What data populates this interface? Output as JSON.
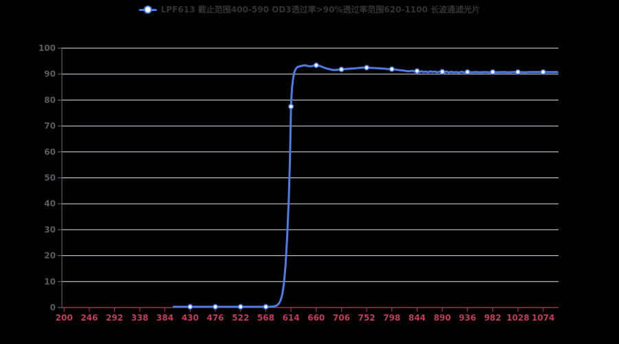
{
  "page": {
    "background": "#000000"
  },
  "legend": {
    "label": "LPF613 截止范围400-590 OD3透过率>90%透过率范围620-1100 长波通滤光片"
  },
  "colors": {
    "background": "#000000",
    "series_line": "#4e7ce6",
    "marker_fill": "#ffffff",
    "grid_line": "#e0e4ee",
    "y_axis": "#6a6f77",
    "y_label": "#585d64",
    "x_axis": "#c5395a",
    "x_label": "#c5395a",
    "legend_text": "#333333"
  },
  "chart_data": {
    "type": "line",
    "title": "LPF613 截止范围400-590 OD3透过率>90%透过率范围620-1100 长波通滤光片",
    "xlabel": "",
    "ylabel": "",
    "grid": true,
    "legend_position": "top-center",
    "xlim": [
      196,
      1102
    ],
    "ylim": [
      0,
      100
    ],
    "x_ticks": [
      200,
      246,
      292,
      338,
      384,
      430,
      476,
      522,
      568,
      614,
      660,
      706,
      752,
      798,
      844,
      890,
      936,
      982,
      1028,
      1074
    ],
    "y_ticks": [
      0,
      10,
      20,
      30,
      40,
      50,
      60,
      70,
      80,
      90,
      100
    ],
    "series": [
      {
        "name": "LPF613 截止范围400-590 OD3透过率>90%透过率范围620-1100 长波通滤光片",
        "color": "#4e7ce6",
        "points": [
          [
            400,
            0.3
          ],
          [
            420,
            0.3
          ],
          [
            440,
            0.3
          ],
          [
            460,
            0.3
          ],
          [
            480,
            0.3
          ],
          [
            500,
            0.3
          ],
          [
            520,
            0.3
          ],
          [
            540,
            0.3
          ],
          [
            560,
            0.3
          ],
          [
            575,
            0.3
          ],
          [
            582,
            0.4
          ],
          [
            588,
            0.8
          ],
          [
            592,
            1.6
          ],
          [
            595,
            2.8
          ],
          [
            598,
            5
          ],
          [
            601,
            9
          ],
          [
            604,
            16
          ],
          [
            607,
            27
          ],
          [
            610,
            42
          ],
          [
            612,
            56
          ],
          [
            613,
            66
          ],
          [
            614,
            77.5
          ],
          [
            615,
            82
          ],
          [
            616,
            85
          ],
          [
            618,
            88.5
          ],
          [
            620,
            90.6
          ],
          [
            622,
            91.8
          ],
          [
            625,
            92.6
          ],
          [
            628,
            92.9
          ],
          [
            632,
            93.1
          ],
          [
            636,
            93.3
          ],
          [
            640,
            93.4
          ],
          [
            645,
            93.1
          ],
          [
            650,
            93.0
          ],
          [
            655,
            93.2
          ],
          [
            660,
            93.4
          ],
          [
            666,
            93.2
          ],
          [
            672,
            92.7
          ],
          [
            678,
            92.2
          ],
          [
            684,
            91.9
          ],
          [
            690,
            91.6
          ],
          [
            696,
            91.6
          ],
          [
            700,
            91.7
          ],
          [
            706,
            91.8
          ],
          [
            714,
            92.0
          ],
          [
            722,
            92.1
          ],
          [
            730,
            92.2
          ],
          [
            738,
            92.4
          ],
          [
            745,
            92.5
          ],
          [
            752,
            92.5
          ],
          [
            760,
            92.4
          ],
          [
            768,
            92.3
          ],
          [
            776,
            92.2
          ],
          [
            784,
            92.1
          ],
          [
            790,
            92.0
          ],
          [
            798,
            91.9
          ],
          [
            806,
            91.7
          ],
          [
            812,
            91.5
          ],
          [
            818,
            91.4
          ],
          [
            824,
            91.2
          ],
          [
            830,
            91.1
          ],
          [
            836,
            91.3
          ],
          [
            840,
            90.9
          ],
          [
            844,
            91.2
          ],
          [
            848,
            90.8
          ],
          [
            852,
            91.1
          ],
          [
            856,
            90.8
          ],
          [
            860,
            91.0
          ],
          [
            864,
            90.7
          ],
          [
            868,
            91.1
          ],
          [
            872,
            90.8
          ],
          [
            876,
            91.0
          ],
          [
            880,
            90.7
          ],
          [
            885,
            90.9
          ],
          [
            890,
            90.9
          ],
          [
            894,
            90.6
          ],
          [
            898,
            91.0
          ],
          [
            902,
            90.6
          ],
          [
            906,
            90.9
          ],
          [
            910,
            90.7
          ],
          [
            915,
            90.8
          ],
          [
            920,
            90.6
          ],
          [
            925,
            90.9
          ],
          [
            930,
            90.7
          ],
          [
            936,
            90.8
          ],
          [
            944,
            90.7
          ],
          [
            952,
            90.8
          ],
          [
            960,
            90.7
          ],
          [
            968,
            90.8
          ],
          [
            976,
            90.7
          ],
          [
            982,
            90.8
          ],
          [
            990,
            90.7
          ],
          [
            1000,
            90.8
          ],
          [
            1010,
            90.7
          ],
          [
            1020,
            90.8
          ],
          [
            1028,
            90.8
          ],
          [
            1040,
            90.7
          ],
          [
            1052,
            90.8
          ],
          [
            1064,
            90.8
          ],
          [
            1074,
            90.8
          ],
          [
            1086,
            90.8
          ],
          [
            1100,
            90.8
          ]
        ],
        "markers": [
          [
            430,
            0.3
          ],
          [
            476,
            0.3
          ],
          [
            522,
            0.3
          ],
          [
            568,
            0.3
          ],
          [
            614,
            77.5
          ],
          [
            660,
            93.4
          ],
          [
            706,
            91.8
          ],
          [
            752,
            92.5
          ],
          [
            798,
            91.9
          ],
          [
            844,
            91.2
          ],
          [
            890,
            90.9
          ],
          [
            936,
            90.8
          ],
          [
            982,
            90.8
          ],
          [
            1028,
            90.8
          ],
          [
            1074,
            90.8
          ]
        ]
      }
    ]
  }
}
